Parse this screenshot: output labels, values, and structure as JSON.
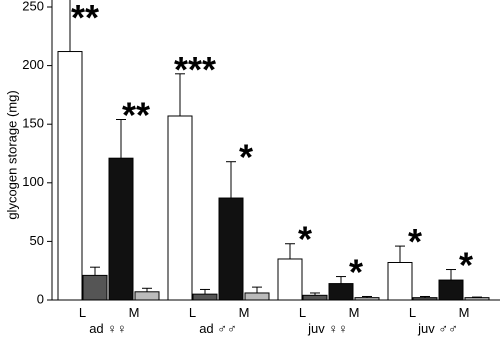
{
  "chart_data": {
    "type": "bar",
    "y_label": "glycogen storage (mg)",
    "categories": [
      "ad ♀♀",
      "ad ♂♂",
      "juv ♀♀",
      "juv ♂♂"
    ],
    "subcategories": [
      "L",
      "M"
    ],
    "series": [
      {
        "color": "#ffffff",
        "values": [
          212,
          157,
          35,
          32
        ],
        "errors": [
          45,
          36,
          13,
          14
        ]
      },
      {
        "color": "#555555",
        "values": [
          21,
          5,
          4,
          2
        ],
        "errors": [
          7,
          4,
          2,
          1
        ]
      },
      {
        "color": "#111111",
        "values": [
          121,
          87,
          14,
          17
        ],
        "errors": [
          33,
          31,
          6,
          9
        ]
      },
      {
        "color": "#bbbbbb",
        "values": [
          7,
          6,
          2,
          2
        ],
        "errors": [
          3,
          5,
          1,
          0.5
        ]
      }
    ],
    "annotations": [
      {
        "text": "**",
        "series": 0,
        "category": 0
      },
      {
        "text": "**",
        "series": 2,
        "category": 0
      },
      {
        "text": "***",
        "series": 0,
        "category": 1
      },
      {
        "text": "*",
        "series": 2,
        "category": 1
      },
      {
        "text": "*",
        "series": 0,
        "category": 2
      },
      {
        "text": "*",
        "series": 2,
        "category": 2
      },
      {
        "text": "*",
        "series": 0,
        "category": 3
      },
      {
        "text": "*",
        "series": 2,
        "category": 3
      }
    ],
    "ylim": [
      0,
      250
    ],
    "yticks": [
      0,
      50,
      100,
      150,
      200,
      250
    ]
  }
}
